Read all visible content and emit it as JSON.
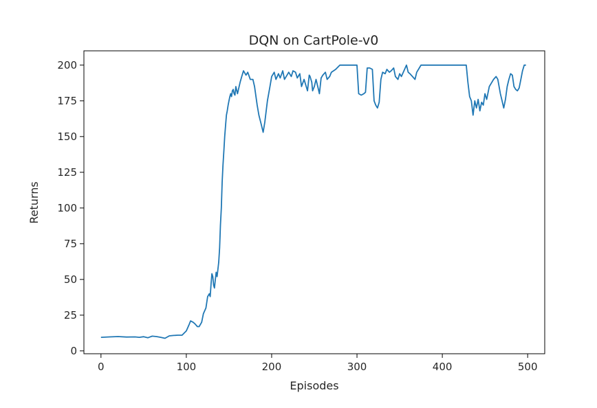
{
  "chart_data": {
    "type": "line",
    "title": "DQN on CartPole-v0",
    "xlabel": "Episodes",
    "ylabel": "Returns",
    "xlim": [
      -20,
      520
    ],
    "ylim": [
      -2,
      210
    ],
    "xticks": [
      0,
      100,
      200,
      300,
      400,
      500
    ],
    "yticks": [
      0,
      25,
      50,
      75,
      100,
      125,
      150,
      175,
      200
    ],
    "grid": false,
    "line_color": "#1f77b4",
    "series": [
      {
        "x": [
          0,
          10,
          20,
          30,
          40,
          45,
          50,
          55,
          60,
          65,
          70,
          75,
          80,
          85,
          90,
          95,
          100,
          103,
          105,
          108,
          110,
          113,
          115,
          118,
          120,
          123,
          125,
          127,
          128,
          129,
          130,
          131,
          132,
          133,
          134,
          135,
          136,
          137,
          138,
          139,
          140,
          141,
          142,
          143,
          144,
          145,
          146,
          147,
          148,
          149,
          150,
          151,
          152,
          153,
          154,
          155,
          156,
          157,
          158,
          160,
          163,
          165,
          167,
          170,
          172,
          175,
          178,
          180,
          183,
          185,
          188,
          190,
          192,
          195,
          198,
          200,
          203,
          205,
          208,
          210,
          213,
          215,
          218,
          220,
          223,
          225,
          228,
          230,
          233,
          235,
          238,
          240,
          242,
          244,
          245,
          247,
          248,
          250,
          252,
          254,
          256,
          258,
          260,
          263,
          265,
          268,
          270,
          275,
          280,
          285,
          290,
          295,
          300,
          302,
          305,
          308,
          310,
          312,
          315,
          318,
          320,
          322,
          324,
          326,
          328,
          330,
          333,
          335,
          338,
          340,
          343,
          345,
          348,
          350,
          352,
          355,
          358,
          360,
          362,
          365,
          368,
          370,
          373,
          375,
          380,
          390,
          400,
          410,
          420,
          425,
          428,
          430,
          432,
          434,
          436,
          438,
          440,
          442,
          444,
          446,
          448,
          450,
          452,
          455,
          458,
          460,
          463,
          465,
          468,
          470,
          472,
          474,
          476,
          478,
          480,
          482,
          484,
          486,
          488,
          490,
          492,
          494,
          496,
          498
        ],
        "y": [
          9.5,
          9.8,
          10,
          9.7,
          9.8,
          9.5,
          9.9,
          9.2,
          10.3,
          10,
          9.5,
          8.8,
          10.5,
          10.8,
          11,
          11,
          14,
          18,
          21,
          20,
          19,
          17,
          17,
          20,
          26,
          30,
          38,
          40,
          38,
          47,
          54,
          52,
          46,
          44,
          50,
          55,
          52,
          57,
          62,
          72,
          88,
          100,
          118,
          130,
          140,
          150,
          158,
          165,
          168,
          172,
          175,
          178,
          180,
          178,
          182,
          183,
          180,
          179,
          185,
          180,
          188,
          192,
          196,
          193,
          195,
          190,
          190,
          185,
          172,
          165,
          158,
          153,
          160,
          175,
          185,
          192,
          195,
          190,
          194,
          191,
          196,
          190,
          193,
          195,
          192,
          196,
          195,
          191,
          194,
          185,
          190,
          186,
          182,
          193,
          192,
          188,
          182,
          185,
          190,
          185,
          180,
          191,
          193,
          195,
          190,
          192,
          195,
          197,
          200,
          200,
          200,
          200,
          200,
          180,
          179,
          180,
          181,
          198,
          198,
          197,
          175,
          172,
          170,
          174,
          190,
          195,
          194,
          197,
          195,
          196,
          198,
          192,
          190,
          194,
          192,
          196,
          200,
          195,
          194,
          192,
          190,
          195,
          198,
          200,
          200,
          200,
          200,
          200,
          200,
          200,
          200,
          188,
          178,
          175,
          165,
          175,
          170,
          176,
          168,
          174,
          172,
          180,
          176,
          185,
          188,
          190,
          192,
          190,
          180,
          175,
          170,
          176,
          185,
          190,
          194,
          193,
          185,
          183,
          182,
          184,
          190,
          196,
          200,
          200
        ]
      }
    ]
  }
}
